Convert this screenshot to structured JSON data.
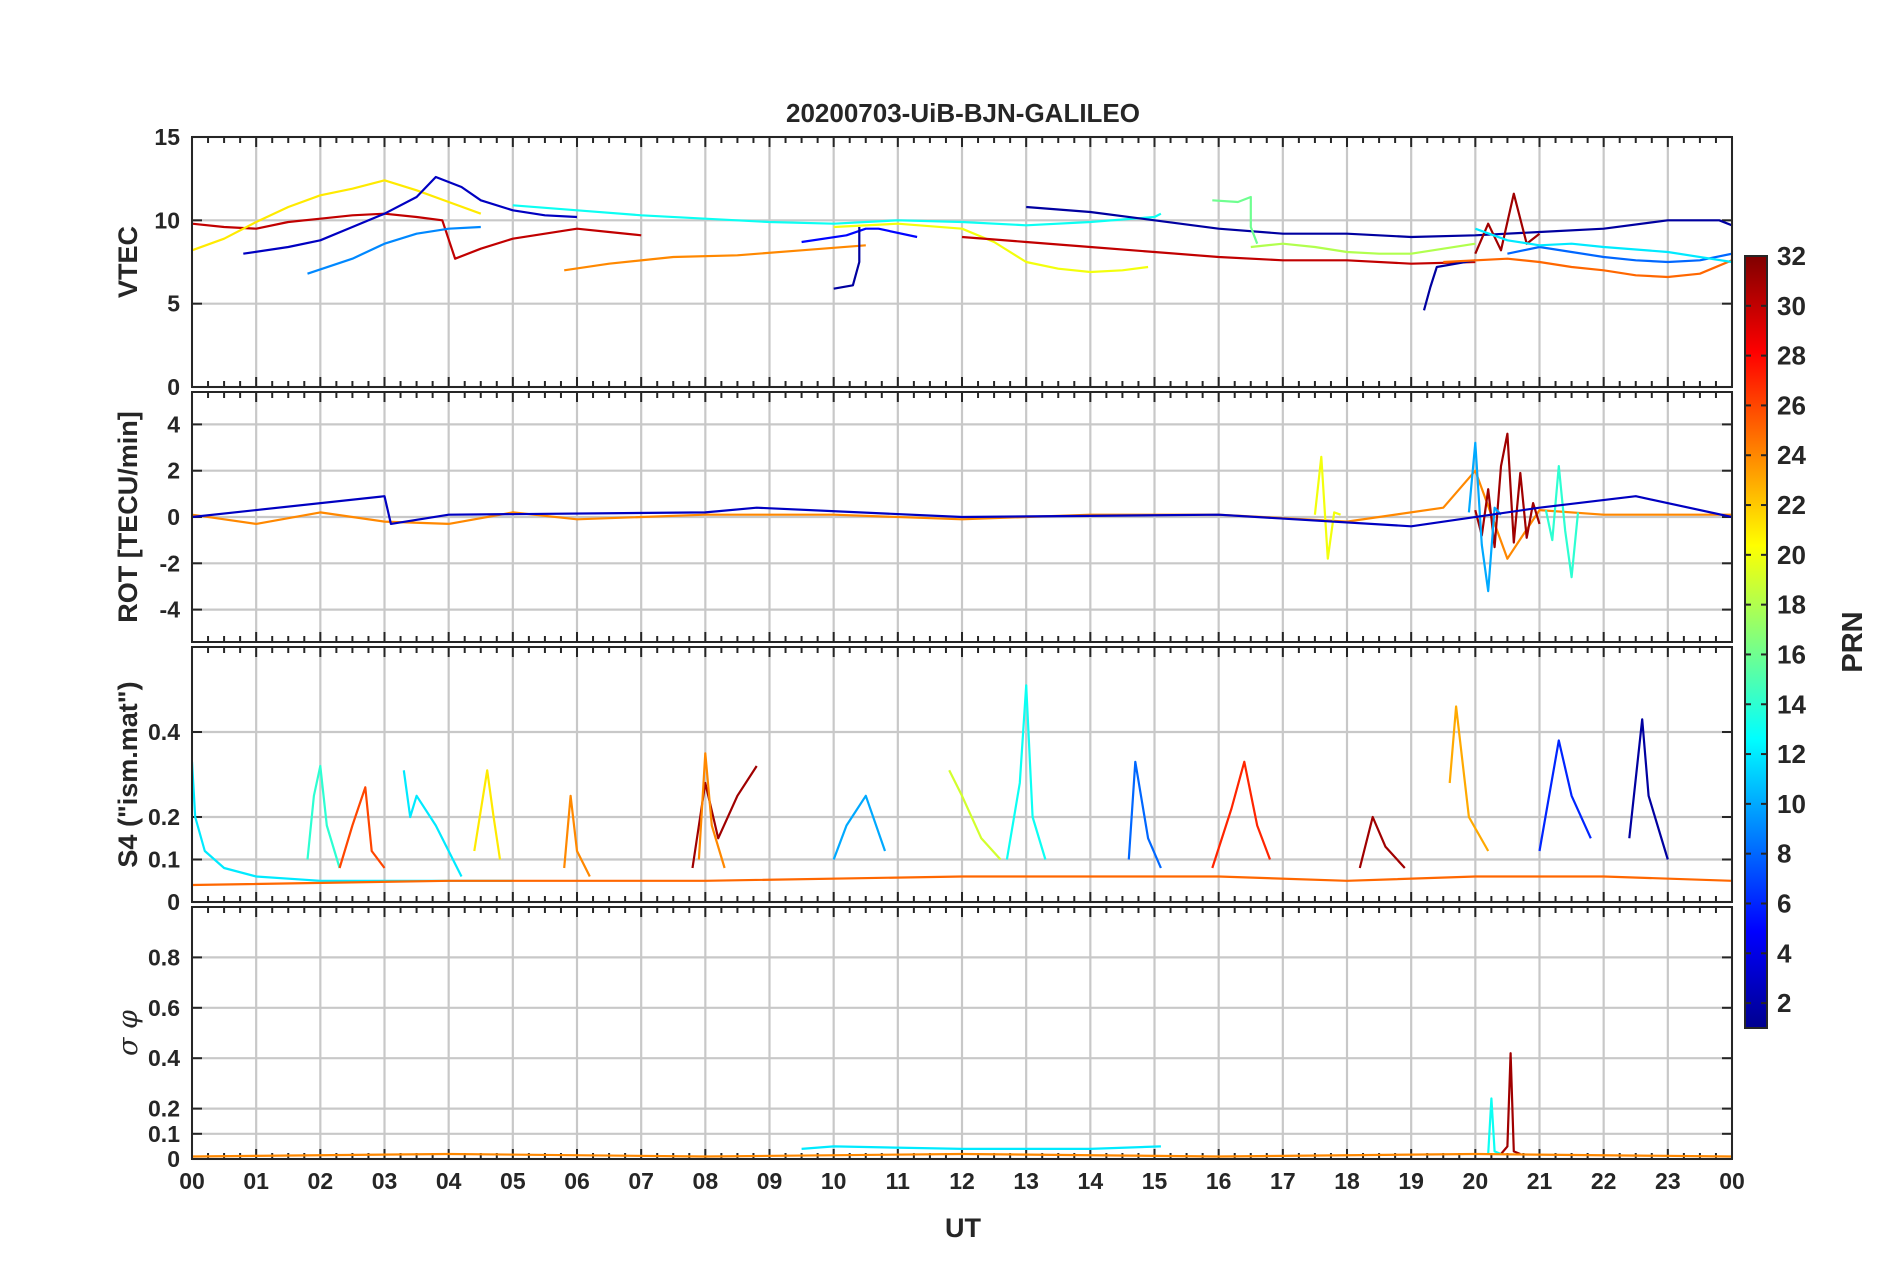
{
  "chart_data": {
    "type": "line",
    "title": "20200703-UiB-BJN-GALILEO",
    "xlabel": "UT",
    "x_tick_labels": [
      "00",
      "01",
      "02",
      "03",
      "04",
      "05",
      "06",
      "07",
      "08",
      "09",
      "10",
      "11",
      "12",
      "13",
      "14",
      "15",
      "16",
      "17",
      "18",
      "19",
      "20",
      "21",
      "22",
      "23",
      "00"
    ],
    "x_range_hours": [
      0,
      24
    ],
    "grid": true,
    "colorbar": {
      "label": "PRN",
      "range": [
        1,
        32
      ],
      "tick_labels": [
        "2",
        "4",
        "6",
        "8",
        "10",
        "12",
        "14",
        "16",
        "18",
        "20",
        "22",
        "24",
        "26",
        "28",
        "30",
        "32"
      ],
      "colormap": "jet",
      "placement": "right"
    },
    "panels": [
      {
        "name": "vtec",
        "ylabel": "VTEC",
        "ylim": [
          0,
          15
        ],
        "y_ticks": [
          0,
          5,
          10,
          15
        ],
        "y_tick_labels": [
          "0",
          "5",
          "10",
          "15"
        ],
        "series": [
          {
            "prn": 30,
            "x": [
              0,
              0.5,
              1,
              1.5,
              2,
              2.5,
              3,
              3.5,
              3.9,
              4.1,
              4.5,
              5,
              5.5,
              6,
              6.5,
              7
            ],
            "y": [
              9.8,
              9.6,
              9.5,
              9.9,
              10.1,
              10.3,
              10.4,
              10.2,
              10.0,
              7.7,
              8.3,
              8.9,
              9.2,
              9.5,
              9.3,
              9.1
            ]
          },
          {
            "prn": 21,
            "x": [
              0,
              0.5,
              1,
              1.5,
              2,
              2.5,
              3,
              3.5,
              4,
              4.5
            ],
            "y": [
              8.2,
              8.9,
              9.9,
              10.8,
              11.5,
              11.9,
              12.4,
              11.8,
              11.1,
              10.4
            ]
          },
          {
            "prn": 3,
            "x": [
              0.8,
              1.5,
              2,
              2.5,
              3,
              3.5,
              3.8,
              4.2,
              4.5,
              5,
              5.5,
              6
            ],
            "y": [
              8.0,
              8.4,
              8.8,
              9.6,
              10.4,
              11.4,
              12.6,
              12.0,
              11.2,
              10.6,
              10.3,
              10.2
            ]
          },
          {
            "prn": 9,
            "x": [
              1.8,
              2.5,
              3,
              3.5,
              4,
              4.5
            ],
            "y": [
              6.8,
              7.7,
              8.6,
              9.2,
              9.5,
              9.6
            ]
          },
          {
            "prn": 24,
            "x": [
              5.8,
              6.5,
              7.5,
              8.5,
              9.5,
              10.5
            ],
            "y": [
              7.0,
              7.4,
              7.8,
              7.9,
              8.2,
              8.5
            ]
          },
          {
            "prn": 13,
            "x": [
              5,
              6,
              7,
              8,
              9,
              10,
              11,
              12,
              13,
              14,
              15,
              15.1
            ],
            "y": [
              10.9,
              10.6,
              10.3,
              10.1,
              9.9,
              9.8,
              10.0,
              9.9,
              9.7,
              9.9,
              10.2,
              10.4
            ]
          },
          {
            "prn": 5,
            "x": [
              9.5,
              10.2,
              10.5,
              10.7,
              11.3
            ],
            "y": [
              8.7,
              9.1,
              9.5,
              9.5,
              9.0
            ]
          },
          {
            "prn": 2,
            "x": [
              10.0,
              10.3,
              10.4,
              10.4
            ],
            "y": [
              5.9,
              6.1,
              7.5,
              9.6
            ]
          },
          {
            "prn": 20,
            "x": [
              10,
              11,
              12,
              12.5,
              13,
              13.5,
              14,
              14.5,
              14.9
            ],
            "y": [
              9.6,
              9.8,
              9.5,
              8.7,
              7.5,
              7.1,
              6.9,
              7.0,
              7.2
            ]
          },
          {
            "prn": 2,
            "x": [
              13.0,
              14,
              15,
              16,
              17,
              18,
              19,
              20,
              21,
              22,
              23,
              23.8,
              24
            ],
            "y": [
              10.8,
              10.5,
              10.0,
              9.5,
              9.2,
              9.2,
              9.0,
              9.1,
              9.3,
              9.5,
              10.0,
              10.0,
              9.7
            ]
          },
          {
            "prn": 30,
            "x": [
              12,
              13,
              14,
              15,
              16,
              17,
              18,
              19,
              20
            ],
            "y": [
              9.0,
              8.7,
              8.4,
              8.1,
              7.8,
              7.6,
              7.6,
              7.4,
              7.5
            ]
          },
          {
            "prn": 16,
            "x": [
              15.9,
              16.3,
              16.5,
              16.5,
              16.6
            ],
            "y": [
              11.2,
              11.1,
              11.4,
              9.6,
              8.6
            ]
          },
          {
            "prn": 18,
            "x": [
              16.5,
              17,
              17.5,
              18,
              18.5,
              19,
              19.5,
              20
            ],
            "y": [
              8.4,
              8.6,
              8.4,
              8.1,
              8.0,
              8.0,
              8.3,
              8.6
            ]
          },
          {
            "prn": 2,
            "x": [
              19.2,
              19.3,
              19.4,
              20
            ],
            "y": [
              4.6,
              6.0,
              7.2,
              7.6
            ]
          },
          {
            "prn": 31,
            "x": [
              20,
              20.2,
              20.4,
              20.6,
              20.8,
              21
            ],
            "y": [
              8.0,
              9.8,
              8.2,
              11.6,
              8.6,
              9.2
            ]
          },
          {
            "prn": 25,
            "x": [
              19.5,
              20.5,
              21,
              21.5,
              22,
              22.5,
              23,
              23.5,
              24
            ],
            "y": [
              7.5,
              7.7,
              7.5,
              7.2,
              7.0,
              6.7,
              6.6,
              6.8,
              7.6
            ]
          },
          {
            "prn": 8,
            "x": [
              20.5,
              21,
              21.5,
              22,
              22.5,
              23,
              23.5,
              24
            ],
            "y": [
              8.0,
              8.4,
              8.1,
              7.8,
              7.6,
              7.5,
              7.6,
              8.0
            ]
          },
          {
            "prn": 12,
            "x": [
              20,
              20.5,
              21,
              21.5,
              22,
              23,
              24
            ],
            "y": [
              9.5,
              8.8,
              8.5,
              8.6,
              8.4,
              8.1,
              7.5
            ]
          }
        ]
      },
      {
        "name": "rot",
        "ylabel": "ROT [TECU/min]",
        "ylim": [
          -5.4,
          5.4
        ],
        "y_ticks": [
          -4,
          -2,
          0,
          2,
          4
        ],
        "y_tick_labels": [
          "-4",
          "-2",
          "0",
          "2",
          "4"
        ],
        "series": [
          {
            "prn": 24,
            "x": [
              0,
              1,
              2,
              3,
              4,
              5,
              6,
              8,
              10,
              12,
              14,
              16,
              18,
              19.5,
              20,
              20.5,
              21,
              22,
              24
            ],
            "y": [
              0.1,
              -0.3,
              0.2,
              -0.2,
              -0.3,
              0.2,
              -0.1,
              0.1,
              0.1,
              -0.1,
              0.1,
              0.1,
              -0.2,
              0.4,
              2.0,
              -1.8,
              0.3,
              0.1,
              0.1
            ]
          },
          {
            "prn": 31,
            "x": [
              20.0,
              20.1,
              20.2,
              20.3,
              20.4,
              20.5,
              20.6,
              20.7,
              20.8,
              20.9,
              21.0
            ],
            "y": [
              0.3,
              -0.8,
              1.2,
              -1.3,
              2.2,
              3.6,
              -1.1,
              1.9,
              -0.9,
              0.6,
              -0.3
            ]
          },
          {
            "prn": 10,
            "x": [
              19.9,
              20.0,
              20.1,
              20.2,
              20.3,
              20.4
            ],
            "y": [
              0.2,
              3.2,
              -1.2,
              -3.2,
              0.4,
              0.1
            ]
          },
          {
            "prn": 14,
            "x": [
              21.1,
              21.2,
              21.3,
              21.4,
              21.5,
              21.6
            ],
            "y": [
              0.3,
              -1.0,
              2.2,
              -0.6,
              -2.6,
              0.2
            ]
          },
          {
            "prn": 20,
            "x": [
              17.5,
              17.6,
              17.7,
              17.8,
              17.9
            ],
            "y": [
              0.1,
              2.6,
              -1.8,
              0.2,
              0.1
            ]
          },
          {
            "prn": 3,
            "x": [
              0,
              3,
              3.1,
              4,
              8,
              8.8,
              12,
              16,
              19,
              21,
              22.5,
              24
            ],
            "y": [
              0.0,
              0.9,
              -0.3,
              0.1,
              0.2,
              0.4,
              0.0,
              0.1,
              -0.4,
              0.4,
              0.9,
              0.0
            ]
          }
        ]
      },
      {
        "name": "s4",
        "ylabel": "S4 (\"ism.mat\")",
        "ylim": [
          0,
          0.6
        ],
        "y_ticks": [
          0,
          0.1,
          0.2,
          0.4
        ],
        "y_tick_labels": [
          "0",
          "0.1",
          "0.2",
          "0.4"
        ],
        "series": [
          {
            "prn": 12,
            "x": [
              0,
              0.05,
              0.2,
              0.5,
              1,
              2,
              3,
              4,
              5
            ],
            "y": [
              0.33,
              0.2,
              0.12,
              0.08,
              0.06,
              0.05,
              0.05,
              0.05,
              0.05
            ]
          },
          {
            "prn": 14,
            "x": [
              1.8,
              1.9,
              2.0,
              2.1,
              2.3
            ],
            "y": [
              0.1,
              0.25,
              0.32,
              0.18,
              0.08
            ]
          },
          {
            "prn": 26,
            "x": [
              2.3,
              2.5,
              2.7,
              2.8,
              3.0
            ],
            "y": [
              0.08,
              0.18,
              0.27,
              0.12,
              0.08
            ]
          },
          {
            "prn": 12,
            "x": [
              3.3,
              3.4,
              3.5,
              3.8,
              4.2
            ],
            "y": [
              0.31,
              0.2,
              0.25,
              0.18,
              0.06
            ]
          },
          {
            "prn": 21,
            "x": [
              4.4,
              4.6,
              4.7,
              4.8
            ],
            "y": [
              0.12,
              0.31,
              0.2,
              0.1
            ]
          },
          {
            "prn": 24,
            "x": [
              5.8,
              5.9,
              6.0,
              6.2
            ],
            "y": [
              0.08,
              0.25,
              0.12,
              0.06
            ]
          },
          {
            "prn": 31,
            "x": [
              7.8,
              8.0,
              8.2,
              8.5,
              8.8
            ],
            "y": [
              0.08,
              0.28,
              0.15,
              0.25,
              0.32
            ]
          },
          {
            "prn": 24,
            "x": [
              7.9,
              8.0,
              8.1,
              8.3
            ],
            "y": [
              0.1,
              0.35,
              0.18,
              0.08
            ]
          },
          {
            "prn": 10,
            "x": [
              10.0,
              10.2,
              10.5,
              10.8
            ],
            "y": [
              0.1,
              0.18,
              0.25,
              0.12
            ]
          },
          {
            "prn": 19,
            "x": [
              11.8,
              12.0,
              12.3,
              12.6
            ],
            "y": [
              0.31,
              0.25,
              0.15,
              0.1
            ]
          },
          {
            "prn": 13,
            "x": [
              12.7,
              12.9,
              13.0,
              13.1,
              13.3
            ],
            "y": [
              0.1,
              0.28,
              0.51,
              0.2,
              0.1
            ]
          },
          {
            "prn": 8,
            "x": [
              14.6,
              14.7,
              14.9,
              15.1
            ],
            "y": [
              0.1,
              0.33,
              0.15,
              0.08
            ]
          },
          {
            "prn": 27,
            "x": [
              15.9,
              16.2,
              16.4,
              16.6,
              16.8
            ],
            "y": [
              0.08,
              0.22,
              0.33,
              0.18,
              0.1
            ]
          },
          {
            "prn": 31,
            "x": [
              18.2,
              18.4,
              18.6,
              18.9
            ],
            "y": [
              0.08,
              0.2,
              0.13,
              0.08
            ]
          },
          {
            "prn": 23,
            "x": [
              19.6,
              19.7,
              19.9,
              20.2
            ],
            "y": [
              0.28,
              0.46,
              0.2,
              0.12
            ]
          },
          {
            "prn": 6,
            "x": [
              21.0,
              21.3,
              21.5,
              21.8
            ],
            "y": [
              0.12,
              0.38,
              0.25,
              0.15
            ]
          },
          {
            "prn": 2,
            "x": [
              22.4,
              22.6,
              22.7,
              23.0
            ],
            "y": [
              0.15,
              0.43,
              0.25,
              0.1
            ]
          },
          {
            "prn": 25,
            "x": [
              0,
              4,
              8,
              12,
              16,
              18,
              20,
              22,
              24
            ],
            "y": [
              0.04,
              0.05,
              0.05,
              0.06,
              0.06,
              0.05,
              0.06,
              0.06,
              0.05
            ]
          }
        ]
      },
      {
        "name": "sigma_phi",
        "ylabel": "σ φ",
        "ylim": [
          0,
          1.0
        ],
        "y_ticks": [
          0,
          0.1,
          0.2,
          0.4,
          0.6,
          0.8
        ],
        "y_tick_labels": [
          "0",
          "0.1",
          "0.2",
          "0.4",
          "0.6",
          "0.8"
        ],
        "series": [
          {
            "prn": 31,
            "x": [
              20.4,
              20.5,
              20.55,
              20.6,
              20.7
            ],
            "y": [
              0.02,
              0.05,
              0.42,
              0.03,
              0.02
            ]
          },
          {
            "prn": 13,
            "x": [
              20.2,
              20.25,
              20.3,
              20.4
            ],
            "y": [
              0.02,
              0.24,
              0.03,
              0.02
            ]
          },
          {
            "prn": 12,
            "x": [
              9.5,
              10,
              12,
              14,
              15.1
            ],
            "y": [
              0.04,
              0.05,
              0.04,
              0.04,
              0.05
            ]
          },
          {
            "prn": 24,
            "x": [
              0,
              4,
              8,
              12,
              16,
              20,
              24
            ],
            "y": [
              0.01,
              0.02,
              0.01,
              0.02,
              0.01,
              0.02,
              0.01
            ]
          }
        ]
      }
    ]
  }
}
